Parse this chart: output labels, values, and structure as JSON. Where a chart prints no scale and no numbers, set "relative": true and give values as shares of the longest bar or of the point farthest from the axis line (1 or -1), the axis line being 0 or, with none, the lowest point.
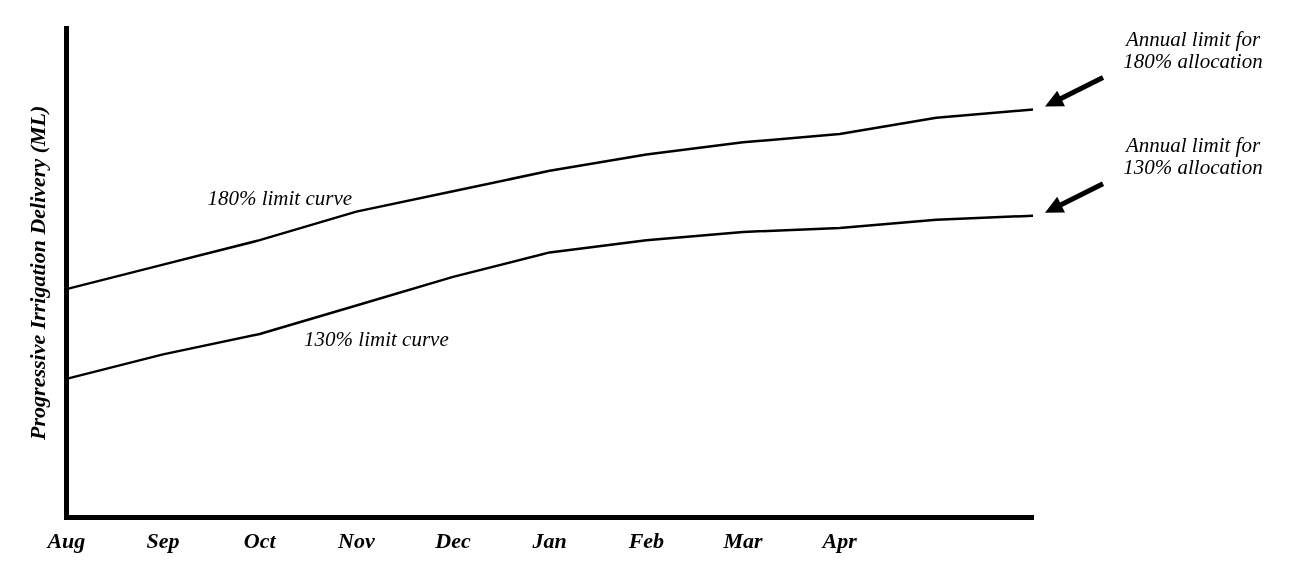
{
  "chart_data": {
    "type": "line",
    "relative": true,
    "ylabel": "Progressive Irrigation Delivery (ML)",
    "categories": [
      "Aug",
      "Sep",
      "Oct",
      "Nov",
      "Dec",
      "Jan",
      "Feb",
      "Mar",
      "Apr",
      null,
      null
    ],
    "series": [
      {
        "name": "180% limit curve",
        "color": "#000000",
        "values": [
          0.56,
          0.62,
          0.68,
          0.75,
          0.8,
          0.85,
          0.89,
          0.92,
          0.94,
          0.98,
          1
        ]
      },
      {
        "name": "130% limit curve",
        "color": "#000000",
        "values": [
          0.34,
          0.4,
          0.45,
          0.52,
          0.59,
          0.65,
          0.68,
          0.7,
          0.71,
          0.73,
          0.74
        ]
      }
    ],
    "annotations": [
      "Annual limit for 180% allocation",
      "Annual limit for 130% allocation"
    ],
    "grid": false,
    "legend": false,
    "marker": "none",
    "line_style": "solid"
  }
}
